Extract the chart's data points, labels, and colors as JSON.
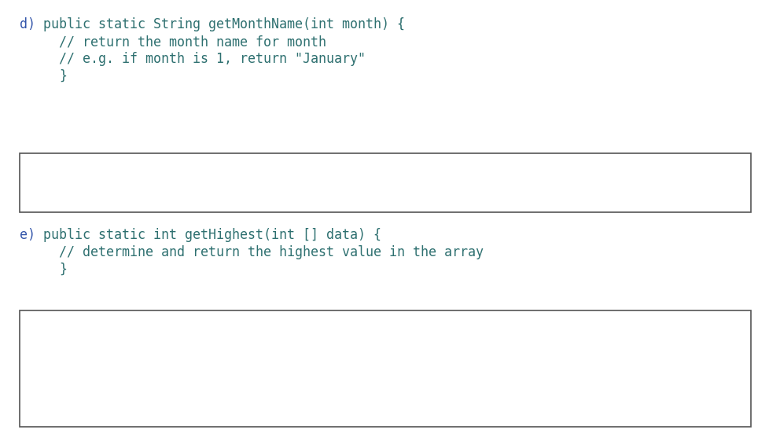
{
  "background_color": "#ffffff",
  "text_color_label": "#3355aa",
  "text_color_code": "#2e7070",
  "font_family": "monospace",
  "section_d": {
    "label": "d)",
    "lines": [
      "public static String getMonthName(int month) {",
      "// return the month name for month",
      "// e.g. if month is 1, return \"January\"",
      "}"
    ],
    "indent": [
      0,
      1,
      1,
      1
    ]
  },
  "section_e": {
    "label": "e)",
    "lines": [
      "public static int getHighest(int [] data) {",
      "// determine and return the highest value in the array",
      "}"
    ],
    "indent": [
      0,
      1,
      1
    ]
  },
  "font_size": 12
}
